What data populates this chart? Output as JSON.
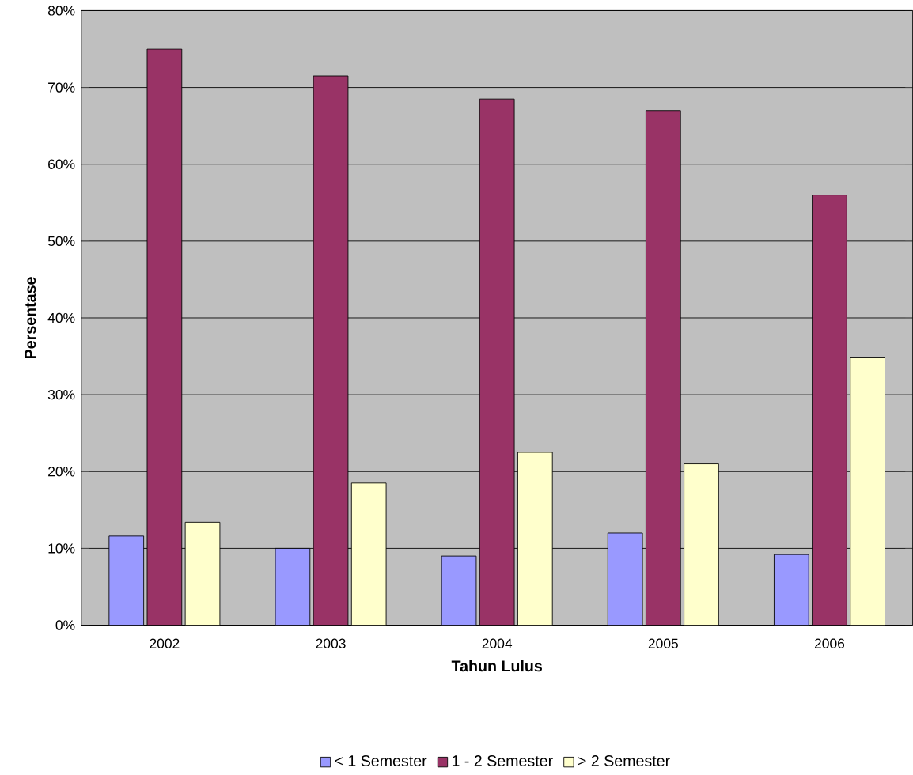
{
  "chart_data": {
    "type": "bar",
    "xlabel": "Tahun Lulus",
    "ylabel": "Persentase",
    "categories": [
      "2002",
      "2003",
      "2004",
      "2005",
      "2006"
    ],
    "series": [
      {
        "name": "< 1 Semester",
        "color": "#9999ff",
        "values": [
          11.6,
          10,
          9,
          12,
          9.2
        ]
      },
      {
        "name": "1 - 2 Semester",
        "color": "#993366",
        "values": [
          75,
          71.5,
          68.5,
          67,
          56
        ]
      },
      {
        "name": "> 2 Semester",
        "color": "#ffffcc",
        "values": [
          13.4,
          18.5,
          22.5,
          21,
          34.8
        ]
      }
    ],
    "ylim": [
      0,
      80
    ],
    "yticks": [
      {
        "value": 0,
        "label": "0%"
      },
      {
        "value": 10,
        "label": "10%"
      },
      {
        "value": 20,
        "label": "20%"
      },
      {
        "value": 30,
        "label": "30%"
      },
      {
        "value": 40,
        "label": "40%"
      },
      {
        "value": 50,
        "label": "50%"
      },
      {
        "value": 60,
        "label": "60%"
      },
      {
        "value": 70,
        "label": "70%"
      },
      {
        "value": 80,
        "label": "80%"
      }
    ],
    "grid": "y",
    "legend": "bottom"
  }
}
